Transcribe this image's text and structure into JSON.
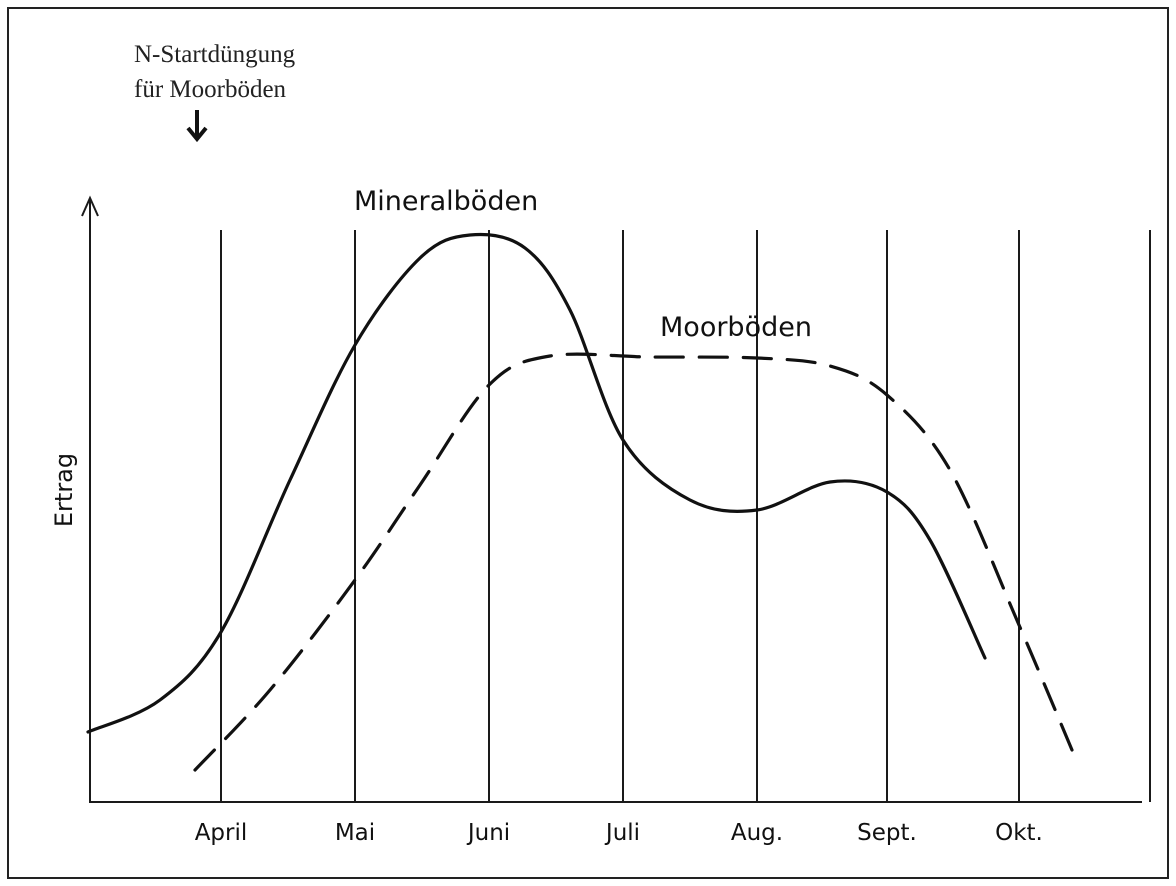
{
  "annotation": {
    "lines": [
      "N-Startdüngung",
      "für Moorböden"
    ]
  },
  "curves": [
    {
      "label": "Mineralböden"
    },
    {
      "label": "Moorböden"
    }
  ],
  "y_axis_label": "Ertrag",
  "months": [
    "April",
    "Mai",
    "Juni",
    "Juli",
    "Aug.",
    "Sept.",
    "Okt."
  ]
}
